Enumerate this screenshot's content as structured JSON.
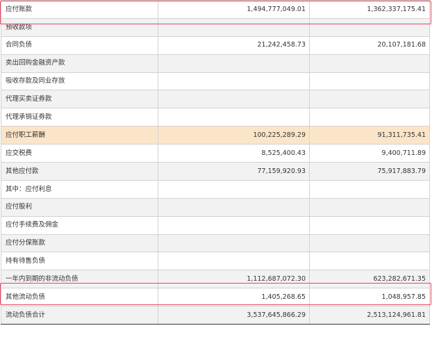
{
  "rows": [
    {
      "name": "应付账款",
      "current": "1,494,777,049.01",
      "previous": "1,362,337,175.41"
    },
    {
      "name": "预收款项",
      "current": "",
      "previous": ""
    },
    {
      "name": "合同负债",
      "current": "21,242,458.73",
      "previous": "20,107,181.68"
    },
    {
      "name": "卖出回购金融资产款",
      "current": "",
      "previous": ""
    },
    {
      "name": "吸收存款及同业存放",
      "current": "",
      "previous": ""
    },
    {
      "name": "代理买卖证券款",
      "current": "",
      "previous": ""
    },
    {
      "name": "代理承销证券款",
      "current": "",
      "previous": ""
    },
    {
      "name": "应付职工薪酬",
      "current": "100,225,289.29",
      "previous": "91,311,735.41"
    },
    {
      "name": "应交税费",
      "current": "8,525,400.43",
      "previous": "9,400,711.89"
    },
    {
      "name": "其他应付款",
      "current": "77,159,920.93",
      "previous": "75,917,883.79"
    },
    {
      "name": "其中：应付利息",
      "current": "",
      "previous": ""
    },
    {
      "name": "应付股利",
      "current": "",
      "previous": ""
    },
    {
      "name": "应付手续费及佣金",
      "current": "",
      "previous": ""
    },
    {
      "name": "应付分保账款",
      "current": "",
      "previous": ""
    },
    {
      "name": "持有待售负债",
      "current": "",
      "previous": ""
    },
    {
      "name": "一年内到期的非流动负债",
      "current": "1,112,687,072.30",
      "previous": "623,282,671.35"
    },
    {
      "name": "其他流动负债",
      "current": "1,405,268.65",
      "previous": "1,048,957.85"
    },
    {
      "name": "流动负债合计",
      "current": "3,537,645,866.29",
      "previous": "2,513,124,961.81"
    }
  ],
  "colors": {
    "highlight_row": "#fbe5c9",
    "annotation_box": "#e4485c",
    "stripe": "#f2f2f2"
  }
}
